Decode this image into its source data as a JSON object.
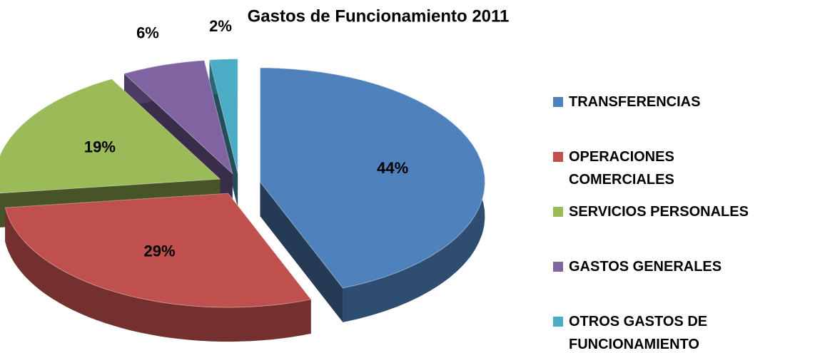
{
  "chart_data": {
    "type": "pie",
    "title": "Gastos de Funcionamiento 2011",
    "categories": [
      "TRANSFERENCIAS",
      "OPERACIONES COMERCIALES",
      "SERVICIOS PERSONALES",
      "GASTOS GENERALES",
      "OTROS GASTOS DE FUNCIONAMIENTO"
    ],
    "values": [
      44,
      29,
      19,
      6,
      2
    ],
    "value_labels": [
      "44%",
      "29%",
      "19%",
      "6%",
      "2%"
    ],
    "colors": [
      "#4f81bd",
      "#c0504d",
      "#9bbb59",
      "#8064a2",
      "#4bacc6"
    ],
    "legend": "right"
  }
}
